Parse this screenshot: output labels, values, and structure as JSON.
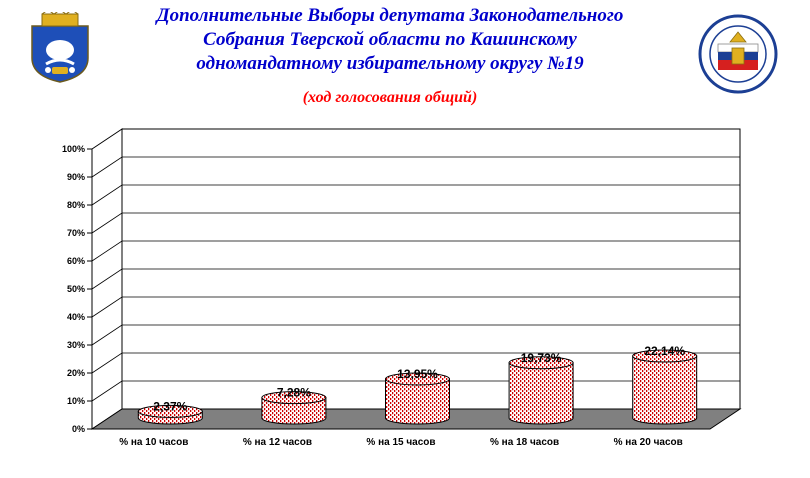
{
  "header": {
    "title_lines": [
      "Дополнительные Выборы депутата Законодательного",
      "Собрания Тверской области по Кашинскому",
      "одномандатному избирательному округу №19"
    ],
    "subtitle": "(ход голосования общий)"
  },
  "logos": {
    "left": "kashin-coat-of-arms",
    "right": "election-commission-emblem"
  },
  "colors": {
    "title": "#0000cc",
    "subtitle": "#ff0000",
    "bar_dots": "#cc0000",
    "floor": "#808080"
  },
  "chart_data": {
    "type": "bar",
    "categories": [
      "% на 10 часов",
      "% на 12 часов",
      "% на 15 часов",
      "% на 18 часов",
      "% на 20 часов"
    ],
    "values": [
      2.37,
      7.28,
      13.95,
      19.73,
      22.14
    ],
    "data_labels": [
      "2,37%",
      "7,28%",
      "13,95%",
      "19,73%",
      "22,14%"
    ],
    "y_ticks": [
      "0%",
      "10%",
      "20%",
      "30%",
      "40%",
      "50%",
      "60%",
      "70%",
      "80%",
      "90%",
      "100%"
    ],
    "ylim": [
      0,
      100
    ],
    "grid": true,
    "legend": "none",
    "style": "3d-cylinder"
  }
}
